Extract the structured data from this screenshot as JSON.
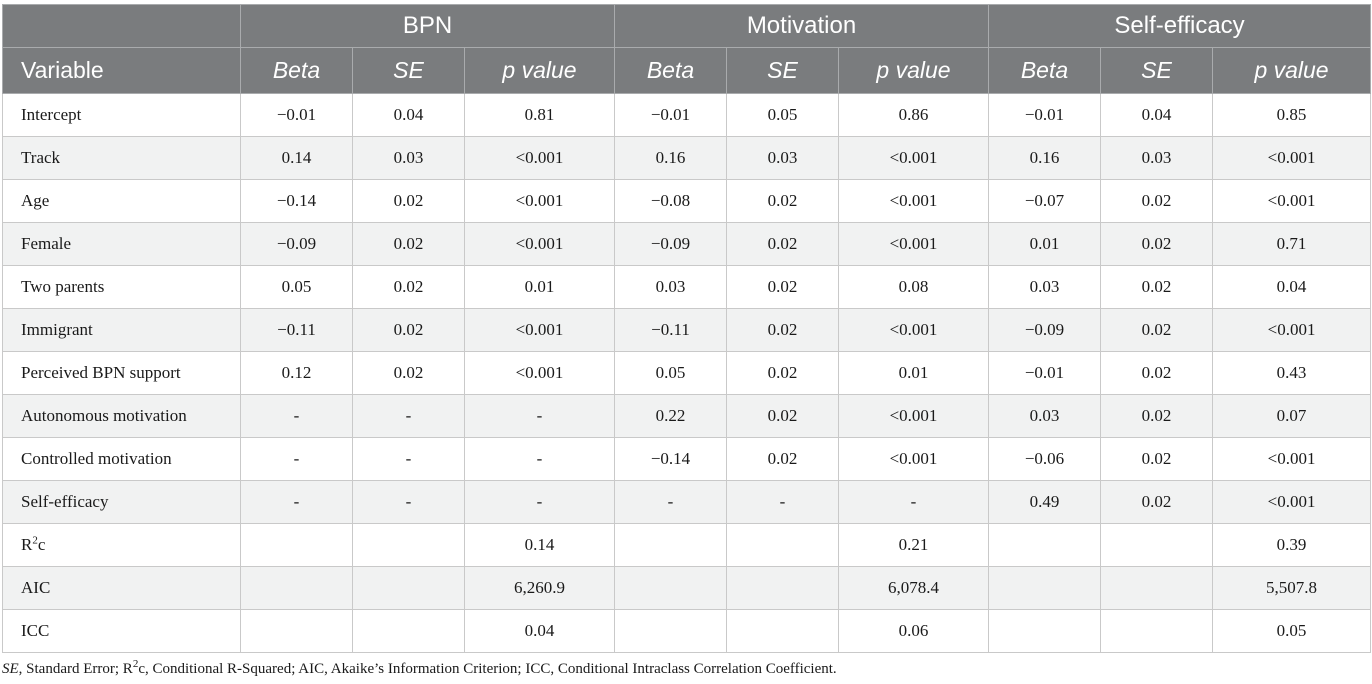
{
  "header": {
    "groups": [
      "BPN",
      "Motivation",
      "Self-efficacy"
    ],
    "variable_label": "Variable",
    "sub_columns": [
      "Beta",
      "SE",
      "p value"
    ]
  },
  "rows": [
    {
      "label": "Intercept",
      "values": [
        "−0.01",
        "0.04",
        "0.81",
        "−0.01",
        "0.05",
        "0.86",
        "−0.01",
        "0.04",
        "0.85"
      ]
    },
    {
      "label": "Track",
      "values": [
        "0.14",
        "0.03",
        "<0.001",
        "0.16",
        "0.03",
        "<0.001",
        "0.16",
        "0.03",
        "<0.001"
      ]
    },
    {
      "label": "Age",
      "values": [
        "−0.14",
        "0.02",
        "<0.001",
        "−0.08",
        "0.02",
        "<0.001",
        "−0.07",
        "0.02",
        "<0.001"
      ]
    },
    {
      "label": "Female",
      "values": [
        "−0.09",
        "0.02",
        "<0.001",
        "−0.09",
        "0.02",
        "<0.001",
        "0.01",
        "0.02",
        "0.71"
      ]
    },
    {
      "label": "Two parents",
      "values": [
        "0.05",
        "0.02",
        "0.01",
        "0.03",
        "0.02",
        "0.08",
        "0.03",
        "0.02",
        "0.04"
      ]
    },
    {
      "label": "Immigrant",
      "values": [
        "−0.11",
        "0.02",
        "<0.001",
        "−0.11",
        "0.02",
        "<0.001",
        "−0.09",
        "0.02",
        "<0.001"
      ]
    },
    {
      "label": "Perceived BPN support",
      "values": [
        "0.12",
        "0.02",
        "<0.001",
        "0.05",
        "0.02",
        "0.01",
        "−0.01",
        "0.02",
        "0.43"
      ]
    },
    {
      "label": "Autonomous motivation",
      "values": [
        "-",
        "-",
        "-",
        "0.22",
        "0.02",
        "<0.001",
        "0.03",
        "0.02",
        "0.07"
      ]
    },
    {
      "label": "Controlled motivation",
      "values": [
        "-",
        "-",
        "-",
        "−0.14",
        "0.02",
        "<0.001",
        "−0.06",
        "0.02",
        "<0.001"
      ]
    },
    {
      "label": "Self-efficacy",
      "values": [
        "-",
        "-",
        "-",
        "-",
        "-",
        "-",
        "0.49",
        "0.02",
        "<0.001"
      ]
    },
    {
      "label": "c",
      "label_prefix": "R",
      "label_sup": "2",
      "values": [
        "",
        "",
        "0.14",
        "",
        "",
        "0.21",
        "",
        "",
        "0.39"
      ]
    },
    {
      "label": "AIC",
      "values": [
        "",
        "",
        "6,260.9",
        "",
        "",
        "6,078.4",
        "",
        "",
        "5,507.8"
      ]
    },
    {
      "label": "ICC",
      "values": [
        "",
        "",
        "0.04",
        "",
        "",
        "0.06",
        "",
        "",
        "0.05"
      ]
    }
  ],
  "footnote": {
    "se_abbr": "SE",
    "se_text": ", Standard Error; R",
    "sup": "2",
    "rest": "c, Conditional R-Squared; AIC, Akaike’s Information Criterion; ICC, Conditional Intraclass Correlation Coefficient."
  }
}
